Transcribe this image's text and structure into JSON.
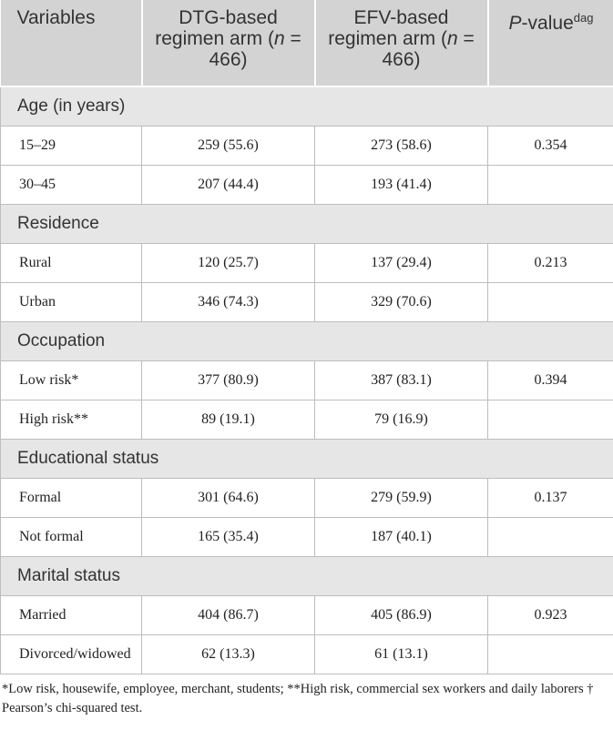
{
  "table": {
    "columns": [
      [
        "Variables"
      ],
      [
        "DTG-based regimen arm (",
        "n",
        " = 466)"
      ],
      [
        "EFV-based regimen arm (",
        "n",
        " = 466)"
      ],
      [
        "P",
        "-value",
        "dag"
      ]
    ],
    "sections": [
      {
        "title": "Age (in years)",
        "rows": [
          [
            "15–29",
            "259 (55.6)",
            "273 (58.6)",
            "0.354"
          ],
          [
            "30–45",
            "207 (44.4)",
            "193 (41.4)"
          ]
        ]
      },
      {
        "title": "Residence",
        "rows": [
          [
            "Rural",
            "120 (25.7)",
            "137 (29.4)",
            "0.213"
          ],
          [
            "Urban",
            "346 (74.3)",
            "329 (70.6)"
          ]
        ]
      },
      {
        "title": "Occupation",
        "rows": [
          [
            "Low risk*",
            "377 (80.9)",
            "387 (83.1)",
            "0.394"
          ],
          [
            "High risk**",
            "89 (19.1)",
            "79 (16.9)"
          ]
        ]
      },
      {
        "title": "Educational status",
        "rows": [
          [
            "Formal",
            "301 (64.6)",
            "279 (59.9)",
            "0.137"
          ],
          [
            "Not formal",
            "165 (35.4)",
            "187 (40.1)"
          ]
        ]
      },
      {
        "title": "Marital status",
        "rows": [
          [
            "Married",
            "404 (86.7)",
            "405 (86.9)",
            "0.923"
          ],
          [
            "Divorced/widowed",
            "62 (13.3)",
            "61 (13.1)"
          ]
        ]
      }
    ],
    "footnote": "*Low risk, housewife, employee, merchant, students; **High risk, commercial sex workers and daily laborers † Pearson’s chi-squared test."
  }
}
